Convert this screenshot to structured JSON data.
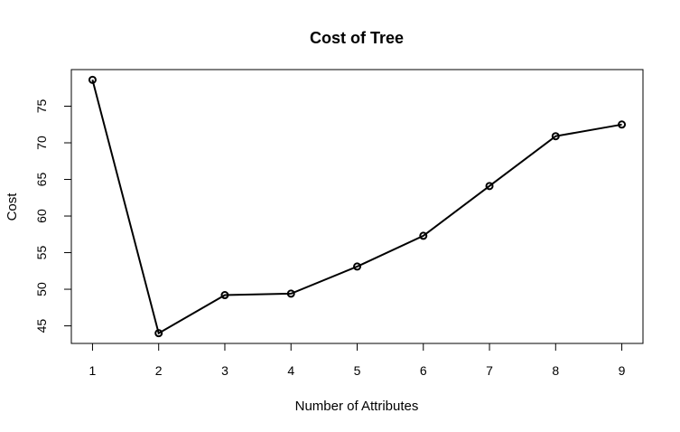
{
  "chart_data": {
    "type": "line",
    "title": "Cost of Tree",
    "xlabel": "Number of Attributes",
    "ylabel": "Cost",
    "x": [
      1,
      2,
      3,
      4,
      5,
      6,
      7,
      8,
      9
    ],
    "series": [
      {
        "values": [
          78.6,
          44.0,
          49.2,
          49.4,
          53.1,
          57.3,
          64.1,
          70.9,
          72.5
        ]
      }
    ],
    "xticks": [
      "1",
      "2",
      "3",
      "4",
      "5",
      "6",
      "7",
      "8",
      "9"
    ],
    "yticks": [
      "45",
      "50",
      "55",
      "60",
      "65",
      "70",
      "75"
    ],
    "xlim": [
      0.68,
      9.32
    ],
    "ylim": [
      42.6,
      80.0
    ],
    "markers": "open-circle",
    "grid": false,
    "legend": "none"
  }
}
